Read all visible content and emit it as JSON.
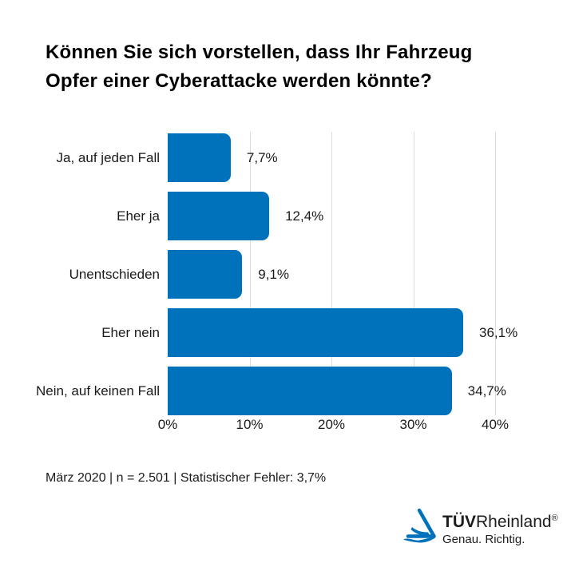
{
  "title": {
    "line1": "Können Sie sich vorstellen, dass Ihr Fahrzeug",
    "line2": "Opfer einer Cyberattacke werden könnte?"
  },
  "chart_data": {
    "type": "bar",
    "orientation": "horizontal",
    "title": "Können Sie sich vorstellen, dass Ihr Fahrzeug Opfer einer Cyberattacke werden könnte?",
    "categories": [
      "Ja, auf jeden Fall",
      "Eher ja",
      "Unentschieden",
      "Eher nein",
      "Nein, auf keinen Fall"
    ],
    "values": [
      7.7,
      12.4,
      9.1,
      36.1,
      34.7
    ],
    "value_labels": [
      "7,7%",
      "12,4%",
      "9,1%",
      "36,1%",
      "34,7%"
    ],
    "x_ticks": [
      "0%",
      "10%",
      "20%",
      "30%",
      "40%"
    ],
    "xlim": [
      0,
      40
    ],
    "xlabel": "",
    "ylabel": "",
    "grid": true,
    "legend": false,
    "bar_color": "#0072bb",
    "gridline_color": "#dcdcdc"
  },
  "footnote": "März 2020 | n = 2.501 | Statistischer Fehler: 3,7%",
  "logo": {
    "brand_bold": "TÜV",
    "brand_regular": "Rheinland",
    "registered_mark": "®",
    "tagline": "Genau. Richtig.",
    "icon": "tuv-rheinland-triangle-logo",
    "brand_color": "#0072bb"
  }
}
